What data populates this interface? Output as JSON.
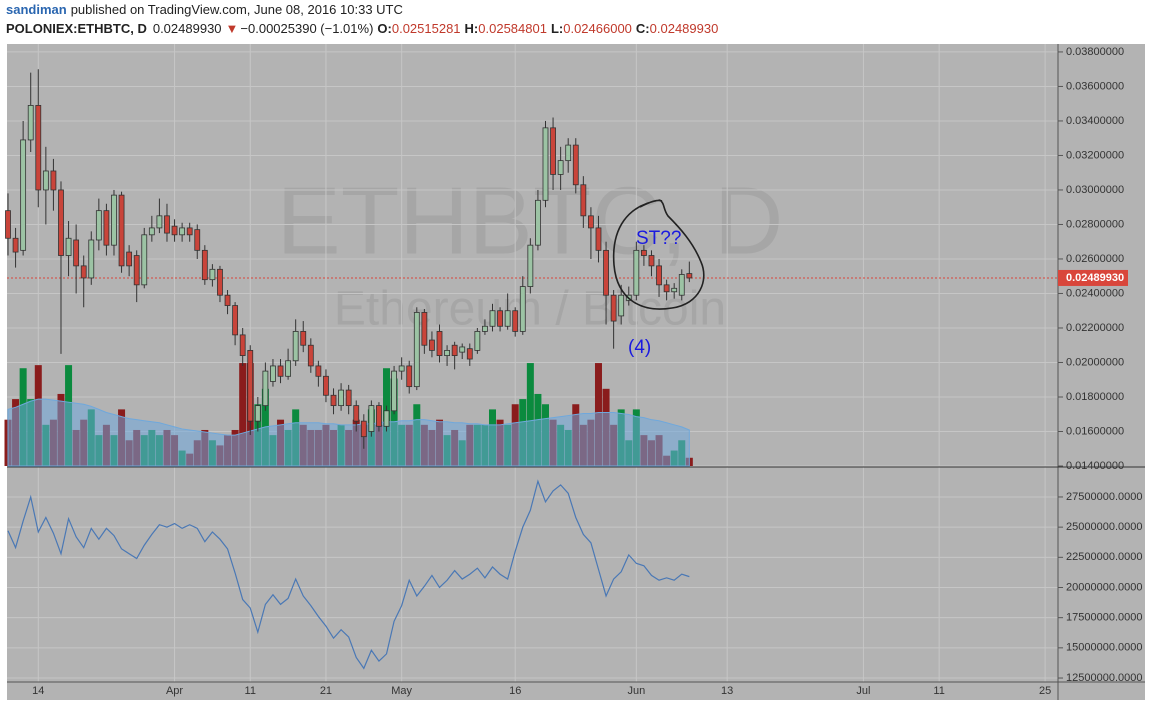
{
  "chart_data": {
    "type": "candlestick",
    "author": "sandiman",
    "published": "published on TradingView.com, June 08, 2016 10:33 UTC",
    "symbol": "POLONIEX:ETHBTC, D",
    "last": "0.02489930",
    "change_arrow": "▼",
    "change": "−0.00025390 (−1.01%)",
    "ohlc_header": [
      {
        "label": "O:",
        "value": "0.02515281"
      },
      {
        "label": "H:",
        "value": "0.02584801"
      },
      {
        "label": "L:",
        "value": "0.02466000"
      },
      {
        "label": "C:",
        "value": "0.02489930"
      }
    ],
    "watermark": "ETHBTC, D",
    "watermark_sub": "Ethereum / Bitcoin",
    "annotations": [
      "ST??",
      "(4)"
    ],
    "last_price_label": "0.02489930",
    "up_color": "#9cc3a4",
    "down_color": "#c9443a",
    "volume_up_color": "#0b8a3e",
    "volume_down_color": "#8a1c1c",
    "volume_ma_color": "#6fa8dc",
    "indicator_color": "#4a78b5",
    "last_price_color": "#d9463b",
    "x": [
      0,
      1,
      2,
      3,
      4,
      5,
      6,
      7,
      8,
      9,
      10,
      11,
      12,
      13,
      14,
      15,
      16,
      17,
      18,
      19,
      20,
      21,
      22,
      23,
      24,
      25,
      26,
      27,
      28,
      29,
      30,
      31,
      32,
      33,
      34,
      35,
      36,
      37,
      38,
      39,
      40,
      41,
      42,
      43,
      44,
      45,
      46,
      47,
      48,
      49,
      50,
      51,
      52,
      53,
      54,
      55,
      56,
      57,
      58,
      59,
      60,
      61,
      62,
      63,
      64,
      65,
      66,
      67,
      68,
      69,
      70,
      71,
      72,
      73,
      74,
      75,
      76,
      77,
      78,
      79,
      80,
      81,
      82,
      83,
      84,
      85,
      86,
      87,
      88,
      89,
      90
    ],
    "open": [
      0.0288,
      0.0272,
      0.0265,
      0.0329,
      0.0349,
      0.03,
      0.0311,
      0.03,
      0.0262,
      0.0271,
      0.0256,
      0.0249,
      0.0271,
      0.0288,
      0.0268,
      0.0297,
      0.0264,
      0.0262,
      0.0245,
      0.0274,
      0.0278,
      0.0285,
      0.0279,
      0.0274,
      0.0278,
      0.0277,
      0.0265,
      0.0248,
      0.0254,
      0.0239,
      0.0233,
      0.0216,
      0.0207,
      0.0166,
      0.0175,
      0.0189,
      0.0198,
      0.0192,
      0.0201,
      0.0218,
      0.021,
      0.0198,
      0.0192,
      0.0181,
      0.0175,
      0.0184,
      0.0175,
      0.0166,
      0.016,
      0.0175,
      0.0163,
      0.0172,
      0.0195,
      0.0198,
      0.0186,
      0.0229,
      0.0213,
      0.0218,
      0.0204,
      0.021,
      0.0206,
      0.0208,
      0.0207,
      0.0218,
      0.0221,
      0.023,
      0.0221,
      0.023,
      0.0218,
      0.0244,
      0.0268,
      0.0294,
      0.0336,
      0.0309,
      0.0317,
      0.0326,
      0.0303,
      0.0285,
      0.0278,
      0.0265,
      0.0239,
      0.0227,
      0.0236,
      0.0239,
      0.0265,
      0.0262,
      0.0256,
      0.0245,
      0.0241,
      0.0239,
      0.02515281
    ],
    "high": [
      0.0298,
      0.0278,
      0.034,
      0.0368,
      0.037,
      0.0325,
      0.0318,
      0.0305,
      0.0282,
      0.028,
      0.0262,
      0.0276,
      0.0295,
      0.0292,
      0.03,
      0.0299,
      0.0268,
      0.0265,
      0.0278,
      0.0285,
      0.0295,
      0.0292,
      0.0283,
      0.0281,
      0.0281,
      0.028,
      0.0268,
      0.0257,
      0.0256,
      0.0242,
      0.0235,
      0.022,
      0.021,
      0.018,
      0.02,
      0.0202,
      0.0202,
      0.0208,
      0.0225,
      0.0224,
      0.0214,
      0.0201,
      0.0196,
      0.0185,
      0.0188,
      0.0187,
      0.0178,
      0.017,
      0.0178,
      0.0177,
      0.0175,
      0.0198,
      0.0203,
      0.0201,
      0.0232,
      0.0231,
      0.0218,
      0.0222,
      0.021,
      0.0212,
      0.0211,
      0.0211,
      0.022,
      0.0225,
      0.0234,
      0.0232,
      0.024,
      0.0232,
      0.025,
      0.0272,
      0.03,
      0.034,
      0.0342,
      0.0325,
      0.033,
      0.033,
      0.0308,
      0.029,
      0.0285,
      0.027,
      0.0242,
      0.0245,
      0.0244,
      0.027,
      0.0268,
      0.0265,
      0.026,
      0.0248,
      0.0246,
      0.0254,
      0.02584801
    ],
    "low": [
      0.0262,
      0.0255,
      0.0262,
      0.0322,
      0.029,
      0.028,
      0.0288,
      0.0205,
      0.025,
      0.024,
      0.0232,
      0.0245,
      0.0265,
      0.0262,
      0.0262,
      0.0252,
      0.025,
      0.0235,
      0.0243,
      0.027,
      0.0275,
      0.027,
      0.027,
      0.027,
      0.027,
      0.026,
      0.0245,
      0.0244,
      0.0235,
      0.0228,
      0.021,
      0.0198,
      0.0158,
      0.016,
      0.0172,
      0.0186,
      0.0188,
      0.019,
      0.0198,
      0.0206,
      0.0194,
      0.0186,
      0.0177,
      0.017,
      0.0172,
      0.017,
      0.016,
      0.015,
      0.0157,
      0.016,
      0.016,
      0.017,
      0.019,
      0.0182,
      0.0184,
      0.0205,
      0.0203,
      0.02,
      0.0198,
      0.0196,
      0.0202,
      0.0198,
      0.0205,
      0.0216,
      0.0218,
      0.0218,
      0.0219,
      0.0215,
      0.0216,
      0.024,
      0.0265,
      0.029,
      0.03,
      0.03,
      0.031,
      0.0298,
      0.0278,
      0.026,
      0.0258,
      0.0222,
      0.0208,
      0.0222,
      0.0233,
      0.0236,
      0.0256,
      0.025,
      0.0238,
      0.0236,
      0.0237,
      0.0236,
      0.02466
    ],
    "close": [
      0.0272,
      0.0264,
      0.0329,
      0.0349,
      0.03,
      0.0311,
      0.03,
      0.0262,
      0.0272,
      0.0256,
      0.0249,
      0.0271,
      0.0288,
      0.0268,
      0.0297,
      0.0256,
      0.0256,
      0.0245,
      0.0274,
      0.0278,
      0.0285,
      0.0275,
      0.0274,
      0.0278,
      0.0274,
      0.0265,
      0.0248,
      0.0254,
      0.0239,
      0.0233,
      0.0216,
      0.0204,
      0.0166,
      0.0175,
      0.0195,
      0.0198,
      0.0192,
      0.0201,
      0.0218,
      0.021,
      0.0198,
      0.0192,
      0.0181,
      0.0175,
      0.0184,
      0.0175,
      0.0166,
      0.0157,
      0.0175,
      0.0163,
      0.0172,
      0.0195,
      0.0198,
      0.0186,
      0.0229,
      0.021,
      0.0207,
      0.0204,
      0.0207,
      0.0204,
      0.0209,
      0.0202,
      0.0218,
      0.0221,
      0.023,
      0.0221,
      0.023,
      0.0218,
      0.0244,
      0.0268,
      0.0294,
      0.0336,
      0.0309,
      0.0317,
      0.0326,
      0.0303,
      0.0285,
      0.0278,
      0.0265,
      0.0239,
      0.0224,
      0.0239,
      0.0239,
      0.0265,
      0.0262,
      0.0256,
      0.0245,
      0.0241,
      0.0243,
      0.0251,
      0.0248993
    ],
    "volume": [
      45,
      65,
      95,
      65,
      98,
      40,
      45,
      70,
      98,
      35,
      45,
      55,
      30,
      40,
      30,
      55,
      25,
      35,
      30,
      35,
      30,
      35,
      30,
      15,
      12,
      25,
      35,
      25,
      20,
      30,
      35,
      100,
      100,
      60,
      75,
      30,
      45,
      35,
      55,
      40,
      35,
      35,
      40,
      35,
      40,
      35,
      45,
      40,
      55,
      40,
      95,
      85,
      40,
      40,
      60,
      40,
      35,
      45,
      30,
      35,
      25,
      40,
      40,
      40,
      55,
      45,
      40,
      60,
      65,
      100,
      70,
      60,
      45,
      40,
      35,
      60,
      40,
      45,
      100,
      75,
      40,
      55,
      25,
      55,
      30,
      25,
      30,
      10,
      15,
      25,
      8
    ],
    "volume_ma": [
      55,
      57,
      60,
      63,
      65,
      65,
      64,
      63,
      62,
      61,
      60,
      58,
      55,
      52,
      50,
      48,
      46,
      45,
      44,
      43,
      42,
      40,
      38,
      36,
      35,
      34,
      33,
      32,
      31,
      30,
      30,
      32,
      34,
      36,
      38,
      39,
      40,
      41,
      42,
      42,
      42,
      42,
      41,
      41,
      40,
      40,
      40,
      41,
      41,
      42,
      43,
      43,
      44,
      44,
      45,
      45,
      44,
      43,
      43,
      42,
      42,
      41,
      41,
      40,
      40,
      40,
      41,
      42,
      43,
      44,
      45,
      46,
      47,
      48,
      49,
      50,
      51,
      51,
      52,
      52,
      52,
      51,
      50,
      48,
      47,
      45,
      44,
      42,
      40,
      38,
      35
    ],
    "volume_ylim": [
      0,
      410
    ],
    "indicator": [
      24700000,
      23300000,
      25500000,
      27500000,
      24600000,
      25800000,
      24500000,
      22800000,
      25700000,
      24200000,
      23300000,
      24900000,
      24000000,
      24900000,
      24300000,
      23200000,
      22800000,
      22400000,
      23500000,
      24400000,
      25200000,
      25000000,
      25300000,
      24900000,
      25200000,
      24900000,
      23800000,
      24600000,
      24000000,
      23200000,
      21200000,
      19000000,
      18300000,
      16300000,
      18600000,
      19400000,
      18600000,
      19100000,
      20700000,
      19300000,
      18500000,
      17600000,
      16800000,
      15800000,
      16500000,
      15900000,
      14200000,
      13300000,
      14800000,
      13900000,
      14500000,
      17200000,
      18500000,
      20600000,
      19300000,
      20100000,
      21000000,
      20000000,
      20600000,
      21400000,
      20700000,
      21100000,
      21600000,
      20800000,
      21700000,
      21100000,
      20700000,
      23000000,
      25000000,
      26400000,
      28800000,
      27100000,
      28000000,
      28500000,
      27800000,
      25800000,
      24400000,
      23700000,
      21500000,
      19300000,
      20700000,
      21300000,
      22700000,
      22000000,
      21800000,
      21000000,
      20600000,
      20800000,
      20600000,
      21100000,
      20900000
    ],
    "xlim": [
      0,
      138.7
    ],
    "xticks": [
      {
        "value": 4,
        "label": "14"
      },
      {
        "value": 22,
        "label": "Apr"
      },
      {
        "value": 32,
        "label": "11"
      },
      {
        "value": 42,
        "label": "21"
      },
      {
        "value": 52,
        "label": "May"
      },
      {
        "value": 67,
        "label": "16"
      },
      {
        "value": 83,
        "label": "Jun"
      },
      {
        "value": 95,
        "label": "13"
      },
      {
        "value": 113,
        "label": "Jul"
      },
      {
        "value": 123,
        "label": "11"
      },
      {
        "value": 137,
        "label": "25"
      }
    ],
    "ylim": [
      0.014,
      0.03846
    ],
    "yticks": [
      {
        "value": 0.014,
        "label": "0.01400000"
      },
      {
        "value": 0.016,
        "label": "0.01600000"
      },
      {
        "value": 0.018,
        "label": "0.01800000"
      },
      {
        "value": 0.02,
        "label": "0.02000000"
      },
      {
        "value": 0.022,
        "label": "0.02200000"
      },
      {
        "value": 0.024,
        "label": "0.02400000"
      },
      {
        "value": 0.026,
        "label": "0.02600000"
      },
      {
        "value": 0.028,
        "label": "0.02800000"
      },
      {
        "value": 0.03,
        "label": "0.03000000"
      },
      {
        "value": 0.032,
        "label": "0.03200000"
      },
      {
        "value": 0.034,
        "label": "0.03400000"
      },
      {
        "value": 0.036,
        "label": "0.03600000"
      },
      {
        "value": 0.038,
        "label": "0.03800000"
      }
    ],
    "y2lim": [
      12170000,
      29900000
    ],
    "y2ticks": [
      {
        "value": 12500000,
        "label": "12500000.0000"
      },
      {
        "value": 15000000,
        "label": "15000000.0000"
      },
      {
        "value": 17500000,
        "label": "17500000.0000"
      },
      {
        "value": 20000000,
        "label": "20000000.0000"
      },
      {
        "value": 22500000,
        "label": "22500000.0000"
      },
      {
        "value": 25000000,
        "label": "25000000.0000"
      },
      {
        "value": 27500000,
        "label": "27500000.0000"
      }
    ],
    "grid": true
  }
}
